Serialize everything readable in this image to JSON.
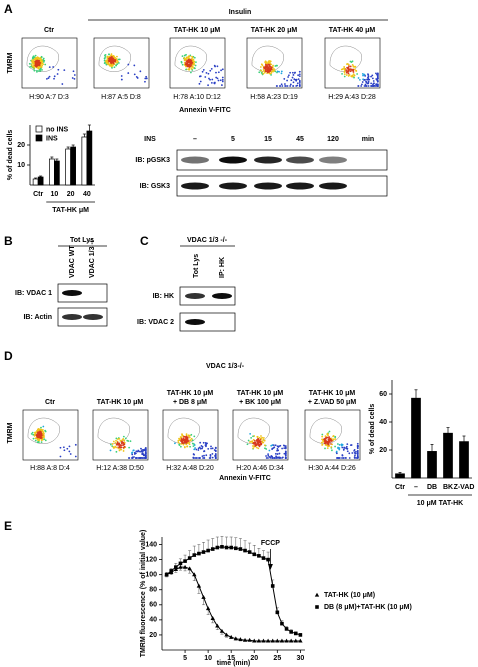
{
  "panels": {
    "A": {
      "letter": "A",
      "treatment_header": "Insulin",
      "y_label": "TMRM",
      "x_label": "Annexin V-FITC",
      "plots": [
        {
          "label": "Ctr",
          "stats": "H:90 A:7 D:3"
        },
        {
          "label": "",
          "stats": "H:87 A:5 D:8"
        },
        {
          "label": "TAT-HK 10 μM",
          "stats": "H:78 A:10 D:12"
        },
        {
          "label": "TAT-HK 20 μM",
          "stats": "H:58 A:23 D:19"
        },
        {
          "label": "TAT-HK 40 μM",
          "stats": "H:29 A:43 D:28"
        }
      ],
      "blot": {
        "header": "INS",
        "lanes": [
          "–",
          "5",
          "15",
          "45",
          "120"
        ],
        "unit": "min",
        "rows": [
          "IB: pGSK3",
          "IB: GSK3"
        ]
      }
    },
    "B": {
      "letter": "B",
      "header": "Tot Lys",
      "lanes": [
        "VDAC WT",
        "VDAC 1/3 -/-"
      ],
      "rows": [
        "IB: VDAC 1",
        "IB: Actin"
      ]
    },
    "C": {
      "letter": "C",
      "header": "VDAC 1/3 -/-",
      "lanes": [
        "Tot Lys",
        "IP: HK"
      ],
      "rows": [
        "IB: HK",
        "IB: VDAC 2"
      ]
    },
    "D": {
      "letter": "D",
      "title": "VDAC 1/3-/-",
      "y_label": "TMRM",
      "x_label": "Annexin V-FITC",
      "plots": [
        {
          "label": [
            "Ctr"
          ],
          "stats": "H:88 A:8 D:4"
        },
        {
          "label": [
            "TAT-HK 10 μM"
          ],
          "stats": "H:12 A:38 D:50"
        },
        {
          "label": [
            "TAT-HK 10 μM",
            "+ DB 8 μM"
          ],
          "stats": "H:32 A:48 D:20"
        },
        {
          "label": [
            "TAT-HK 10 μM",
            "+ BK 100 μM"
          ],
          "stats": "H:20 A:46 D:34"
        },
        {
          "label": [
            "TAT-HK 10 μM",
            "+ Z.VAD 50 μM"
          ],
          "stats": "H:30 A:44 D:26"
        }
      ]
    },
    "E": {
      "letter": "E"
    }
  },
  "chart_data": [
    {
      "type": "bar",
      "y_label": "% of dead cells",
      "x_label": "TAT-HK μM",
      "categories": [
        "Ctr",
        "10",
        "20",
        "40"
      ],
      "series": [
        {
          "name": "no INS",
          "color": "#ffffff",
          "values": [
            3,
            13,
            18,
            24
          ],
          "errors": [
            0.5,
            1,
            1,
            1.5
          ]
        },
        {
          "name": "INS",
          "color": "#000000",
          "values": [
            4,
            12,
            19,
            27
          ],
          "errors": [
            0.5,
            1,
            1,
            3
          ]
        }
      ],
      "ylim": [
        0,
        30
      ],
      "yticks": [
        10,
        20
      ]
    },
    {
      "type": "bar",
      "y_label": "% of dead cells",
      "x_label": "10 μM TAT-HK",
      "categories": [
        "Ctr",
        "–",
        "DB",
        "BK",
        "Z-VAD"
      ],
      "series": [
        {
          "color": "#000000",
          "values": [
            3,
            57,
            19,
            32,
            26
          ],
          "errors": [
            1,
            6,
            5,
            4,
            4
          ]
        }
      ],
      "ylim": [
        0,
        70
      ],
      "yticks": [
        20,
        40,
        60
      ]
    },
    {
      "type": "line",
      "y_label": "TMRM fluorescence (% of initial value)",
      "x_label": "time (min)",
      "annotation": {
        "text": "FCCP",
        "x": 23.5
      },
      "x": [
        1,
        2,
        3,
        4,
        5,
        6,
        7,
        8,
        9,
        10,
        11,
        12,
        13,
        14,
        15,
        16,
        17,
        18,
        19,
        20,
        21,
        22,
        23,
        24,
        25,
        26,
        27,
        28,
        29,
        30
      ],
      "series": [
        {
          "name": "TAT-HK (10 μM)",
          "marker": "triangle",
          "color": "#000000",
          "values": [
            100,
            103,
            107,
            110,
            110,
            108,
            100,
            85,
            70,
            55,
            42,
            32,
            25,
            20,
            17,
            15,
            14,
            13,
            13,
            12,
            12,
            12,
            12,
            12,
            12,
            12,
            12,
            12,
            12,
            12
          ],
          "errors": [
            3,
            3,
            4,
            4,
            5,
            6,
            8,
            10,
            10,
            8,
            6,
            5,
            4,
            3,
            2,
            2,
            2,
            1,
            1,
            1,
            1,
            1,
            1,
            1,
            1,
            1,
            1,
            1,
            1,
            1
          ]
        },
        {
          "name": "DB (8 μM)+TAT-HK (10 μM)",
          "marker": "square",
          "color": "#000000",
          "values": [
            100,
            105,
            110,
            115,
            118,
            122,
            126,
            128,
            130,
            132,
            134,
            136,
            137,
            136,
            136,
            135,
            134,
            132,
            130,
            127,
            125,
            122,
            120,
            85,
            50,
            35,
            28,
            24,
            22,
            20
          ],
          "errors": [
            3,
            3,
            5,
            6,
            8,
            10,
            12,
            12,
            13,
            14,
            14,
            14,
            14,
            14,
            14,
            14,
            14,
            13,
            12,
            12,
            10,
            10,
            10,
            8,
            6,
            4,
            3,
            3,
            2,
            2
          ]
        }
      ],
      "xlim": [
        0,
        31
      ],
      "ylim": [
        0,
        150
      ],
      "xticks": [
        5,
        10,
        15,
        20,
        25,
        30
      ],
      "yticks": [
        20,
        40,
        60,
        80,
        100,
        120,
        140
      ]
    }
  ]
}
